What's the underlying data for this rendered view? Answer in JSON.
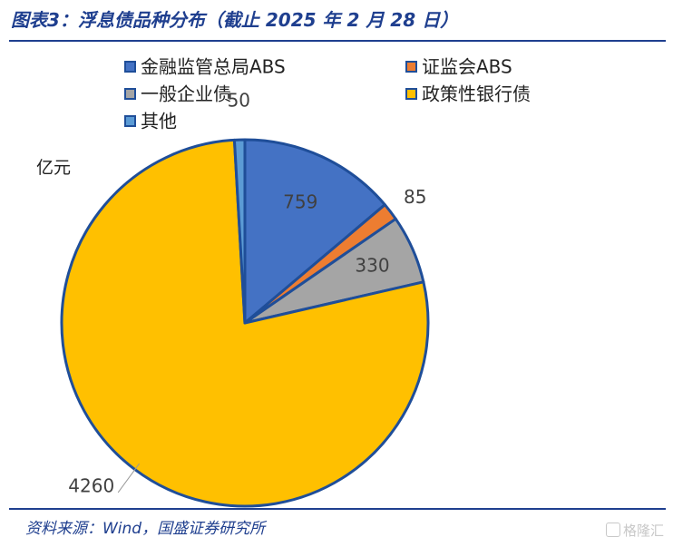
{
  "header": {
    "title": "图表3：浮息债品种分布（截止 2025 年 2 月 28 日）"
  },
  "footer": {
    "source": "资料来源：Wind，国盛证券研究所",
    "watermark": "格隆汇"
  },
  "chart_data": {
    "type": "pie",
    "unit_label": "亿元",
    "categories": [
      "金融监管总局ABS",
      "证监会ABS",
      "一般企业债",
      "政策性银行债",
      "其他"
    ],
    "values": [
      759,
      85,
      330,
      4260,
      50
    ],
    "colors": [
      "#4472c4",
      "#ed7d31",
      "#a5a5a5",
      "#ffc000",
      "#5b9bd5"
    ],
    "slice_border_color": "#1f4e99",
    "legend_position": "top"
  }
}
